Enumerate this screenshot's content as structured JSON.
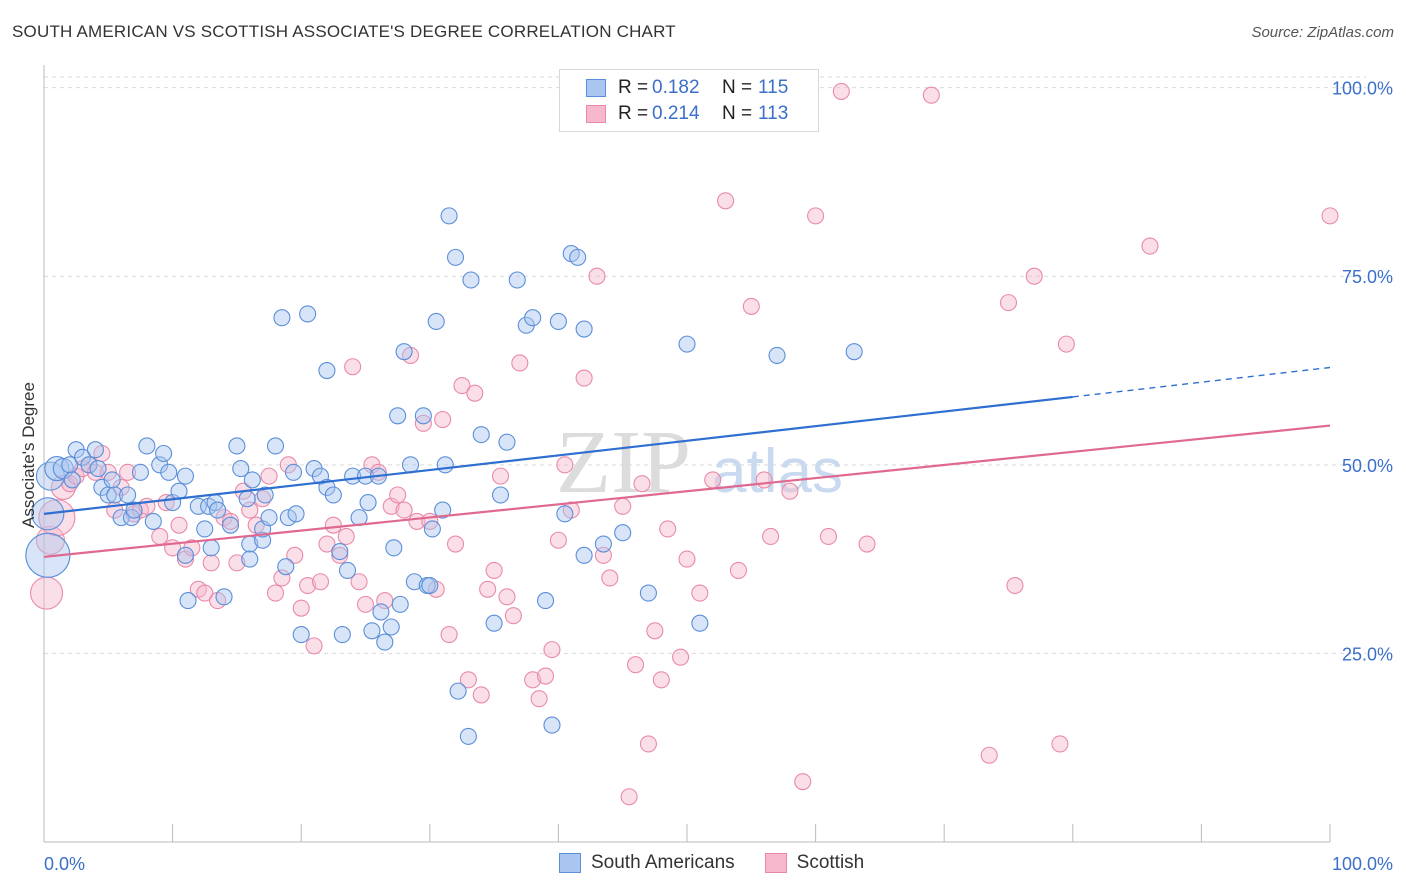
{
  "title": "SOUTH AMERICAN VS SCOTTISH ASSOCIATE'S DEGREE CORRELATION CHART",
  "source": "Source: ZipAtlas.com",
  "watermark": {
    "zip": "ZIP",
    "atlas": "atlas"
  },
  "legend_top": [
    {
      "r_label": "R =",
      "r_value": "0.182",
      "n_label": "N =",
      "n_value": "115"
    },
    {
      "r_label": "R =",
      "r_value": "0.214",
      "n_label": "N =",
      "n_value": "113"
    }
  ],
  "legend_bottom": [
    "South Americans",
    "Scottish"
  ],
  "colors": {
    "blue_fill": "#a8c6f0",
    "blue_stroke": "#5b8fd9",
    "blue_line": "#2f6fd1",
    "pink_fill": "#f7b8cd",
    "pink_stroke": "#e98aab",
    "pink_line": "#e0698f",
    "tick_label": "#3b6fc9",
    "grid": "#d9d9d9"
  },
  "chart_data": {
    "type": "scatter",
    "title": "SOUTH AMERICAN VS SCOTTISH ASSOCIATE'S DEGREE CORRELATION CHART",
    "xlabel": "",
    "ylabel": "Associate's Degree",
    "xlim": [
      0,
      100
    ],
    "ylim": [
      0,
      103
    ],
    "x_tick_labels": [
      "0.0%",
      "100.0%"
    ],
    "y_ticks": [
      25,
      50,
      75,
      100
    ],
    "y_tick_labels": [
      "25.0%",
      "50.0%",
      "75.0%",
      "100.0%"
    ],
    "grid": true,
    "legend_position": "top-center",
    "series": [
      {
        "name": "South Americans",
        "r": 0.182,
        "n": 115,
        "trend": {
          "x0": 0,
          "y0": 43.5,
          "x1": 80,
          "y1": 59.0,
          "dashed_to_x": 100,
          "dashed_to_y": 62.9
        },
        "points": [
          [
            0.3,
            38,
            22
          ],
          [
            0.3,
            43.5,
            16
          ],
          [
            0.5,
            48.5,
            14
          ],
          [
            1.0,
            49.5,
            12
          ],
          [
            1.5,
            49.5,
            10
          ],
          [
            2,
            50,
            8
          ],
          [
            2.5,
            52,
            8
          ],
          [
            2.2,
            48,
            8
          ],
          [
            3,
            51,
            8
          ],
          [
            3.5,
            50,
            8
          ],
          [
            4,
            52,
            8
          ],
          [
            4.2,
            49.5,
            8
          ],
          [
            4.5,
            47,
            8
          ],
          [
            5,
            46,
            8
          ],
          [
            5.3,
            48,
            8
          ],
          [
            5.5,
            46,
            8
          ],
          [
            6,
            43,
            8
          ],
          [
            6.5,
            46,
            8
          ],
          [
            6.8,
            43,
            8
          ],
          [
            7,
            44,
            8
          ],
          [
            7.5,
            49,
            8
          ],
          [
            8,
            52.5,
            8
          ],
          [
            8.5,
            42.5,
            8
          ],
          [
            9,
            50,
            8
          ],
          [
            9.3,
            51.5,
            8
          ],
          [
            9.7,
            49,
            8
          ],
          [
            10,
            45,
            8
          ],
          [
            10.5,
            46.5,
            8
          ],
          [
            11,
            38,
            8
          ],
          [
            11,
            48.5,
            8
          ],
          [
            11.2,
            32,
            8
          ],
          [
            12,
            44.5,
            8
          ],
          [
            12.5,
            41.5,
            8
          ],
          [
            12.8,
            44.5,
            8
          ],
          [
            13,
            39,
            8
          ],
          [
            13.3,
            45,
            8
          ],
          [
            13.5,
            44,
            8
          ],
          [
            14,
            32.5,
            8
          ],
          [
            14.5,
            42,
            8
          ],
          [
            15,
            52.5,
            8
          ],
          [
            15.3,
            49.5,
            8
          ],
          [
            15.8,
            45.5,
            8
          ],
          [
            16,
            39.5,
            8
          ],
          [
            16,
            37.5,
            8
          ],
          [
            16.2,
            48,
            8
          ],
          [
            17,
            40,
            8
          ],
          [
            17,
            41.5,
            8
          ],
          [
            17.2,
            46,
            8
          ],
          [
            17.5,
            43,
            8
          ],
          [
            18,
            52.5,
            8
          ],
          [
            18.5,
            69.5,
            8
          ],
          [
            18.8,
            36.5,
            8
          ],
          [
            19,
            43,
            8
          ],
          [
            19.4,
            49,
            8
          ],
          [
            19.6,
            43.5,
            8
          ],
          [
            20,
            27.5,
            8
          ],
          [
            20.5,
            70,
            8
          ],
          [
            21,
            49.5,
            8
          ],
          [
            21.5,
            48.5,
            8
          ],
          [
            22,
            47,
            8
          ],
          [
            22,
            62.5,
            8
          ],
          [
            22.5,
            46,
            8
          ],
          [
            23,
            38.5,
            8
          ],
          [
            23.2,
            27.5,
            8
          ],
          [
            23.6,
            36,
            8
          ],
          [
            24,
            48.5,
            8
          ],
          [
            24.5,
            43,
            8
          ],
          [
            25,
            48.5,
            8
          ],
          [
            25.2,
            45,
            8
          ],
          [
            25.5,
            28,
            8
          ],
          [
            26,
            48.5,
            8
          ],
          [
            26.2,
            30.5,
            8
          ],
          [
            26.5,
            26.5,
            8
          ],
          [
            27,
            28.5,
            8
          ],
          [
            27.2,
            39,
            8
          ],
          [
            27.5,
            56.5,
            8
          ],
          [
            27.7,
            31.5,
            8
          ],
          [
            28,
            65,
            8
          ],
          [
            28.5,
            50,
            8
          ],
          [
            28.8,
            34.5,
            8
          ],
          [
            29.5,
            56.5,
            8
          ],
          [
            29.8,
            34,
            8
          ],
          [
            30,
            34,
            8
          ],
          [
            30.2,
            41.5,
            8
          ],
          [
            30.5,
            69,
            8
          ],
          [
            31,
            44,
            8
          ],
          [
            31.2,
            50,
            8
          ],
          [
            31.5,
            83,
            8
          ],
          [
            32,
            77.5,
            8
          ],
          [
            32.2,
            20,
            8
          ],
          [
            33,
            14,
            8
          ],
          [
            33.2,
            74.5,
            8
          ],
          [
            34,
            54,
            8
          ],
          [
            35,
            29,
            8
          ],
          [
            35.5,
            46,
            8
          ],
          [
            36,
            53,
            8
          ],
          [
            36.8,
            74.5,
            8
          ],
          [
            37.5,
            68.5,
            8
          ],
          [
            38,
            69.5,
            8
          ],
          [
            39,
            32,
            8
          ],
          [
            39.5,
            15.5,
            8
          ],
          [
            40,
            69,
            8
          ],
          [
            40.5,
            43.5,
            8
          ],
          [
            41,
            78,
            8
          ],
          [
            41.5,
            77.5,
            8
          ],
          [
            42,
            68,
            8
          ],
          [
            42,
            38,
            8
          ],
          [
            43.5,
            39.5,
            8
          ],
          [
            45,
            41,
            8
          ],
          [
            47,
            33,
            8
          ],
          [
            50,
            66,
            8
          ],
          [
            51,
            29,
            8
          ],
          [
            57,
            64.5,
            8
          ],
          [
            63,
            65,
            8
          ]
        ]
      },
      {
        "name": "Scottish",
        "r": 0.214,
        "n": 113,
        "trend": {
          "x0": 0,
          "y0": 37.8,
          "x1": 100,
          "y1": 55.2
        },
        "points": [
          [
            0.2,
            33,
            16
          ],
          [
            0.5,
            40,
            14
          ],
          [
            1,
            43,
            18
          ],
          [
            1.5,
            47,
            12
          ],
          [
            2,
            47.5,
            8
          ],
          [
            2.5,
            48.5,
            8
          ],
          [
            3,
            49.5,
            8
          ],
          [
            3.5,
            50,
            8
          ],
          [
            4,
            49,
            8
          ],
          [
            4.5,
            51.5,
            8
          ],
          [
            5,
            49,
            8
          ],
          [
            5.5,
            44,
            8
          ],
          [
            6,
            47,
            8
          ],
          [
            6.5,
            49,
            8
          ],
          [
            7,
            43.5,
            8
          ],
          [
            7.5,
            44,
            8
          ],
          [
            8,
            44.5,
            8
          ],
          [
            9,
            40.5,
            8
          ],
          [
            9.5,
            45,
            8
          ],
          [
            10,
            39,
            8
          ],
          [
            10.5,
            42,
            8
          ],
          [
            11,
            37.5,
            8
          ],
          [
            11.5,
            39,
            8
          ],
          [
            12,
            33.5,
            8
          ],
          [
            12.5,
            33,
            8
          ],
          [
            13,
            37,
            8
          ],
          [
            13.5,
            32,
            8
          ],
          [
            14,
            43,
            8
          ],
          [
            14.5,
            42.5,
            8
          ],
          [
            15,
            37,
            8
          ],
          [
            15.5,
            46.5,
            8
          ],
          [
            16,
            44,
            8
          ],
          [
            16.5,
            42,
            8
          ],
          [
            17,
            45.5,
            8
          ],
          [
            17.5,
            48.5,
            8
          ],
          [
            18,
            33,
            8
          ],
          [
            18.5,
            35,
            8
          ],
          [
            19,
            50,
            8
          ],
          [
            19.5,
            38,
            8
          ],
          [
            20,
            31,
            8
          ],
          [
            20.5,
            34,
            8
          ],
          [
            21,
            26,
            8
          ],
          [
            21.5,
            34.5,
            8
          ],
          [
            22,
            39.5,
            8
          ],
          [
            22.5,
            42,
            8
          ],
          [
            23,
            38,
            8
          ],
          [
            23.5,
            40.5,
            8
          ],
          [
            24,
            63,
            8
          ],
          [
            24.5,
            34.5,
            8
          ],
          [
            25,
            31.5,
            8
          ],
          [
            25.5,
            50,
            8
          ],
          [
            26,
            49,
            8
          ],
          [
            26.5,
            32,
            8
          ],
          [
            27,
            44.5,
            8
          ],
          [
            27.5,
            46,
            8
          ],
          [
            28,
            44,
            8
          ],
          [
            28.5,
            64.5,
            8
          ],
          [
            29,
            42.5,
            8
          ],
          [
            29.5,
            55.5,
            8
          ],
          [
            30,
            42.5,
            8
          ],
          [
            30.5,
            33.5,
            8
          ],
          [
            31,
            56,
            8
          ],
          [
            31.5,
            27.5,
            8
          ],
          [
            32,
            39.5,
            8
          ],
          [
            32.5,
            60.5,
            8
          ],
          [
            33,
            21.5,
            8
          ],
          [
            33.5,
            59.5,
            8
          ],
          [
            34,
            19.5,
            8
          ],
          [
            34.5,
            33.5,
            8
          ],
          [
            35,
            36,
            8
          ],
          [
            35.5,
            48.5,
            8
          ],
          [
            36,
            32.5,
            8
          ],
          [
            36.5,
            30,
            8
          ],
          [
            37,
            63.5,
            8
          ],
          [
            38,
            21.5,
            8
          ],
          [
            38.5,
            19,
            8
          ],
          [
            39,
            22,
            8
          ],
          [
            39.5,
            25.5,
            8
          ],
          [
            40,
            40,
            8
          ],
          [
            40.5,
            50,
            8
          ],
          [
            41,
            44,
            8
          ],
          [
            42,
            61.5,
            8
          ],
          [
            43,
            75,
            8
          ],
          [
            43.5,
            38,
            8
          ],
          [
            44,
            35,
            8
          ],
          [
            45,
            44.5,
            8
          ],
          [
            45.5,
            6,
            8
          ],
          [
            46,
            23.5,
            8
          ],
          [
            46.5,
            47.5,
            8
          ],
          [
            47,
            13,
            8
          ],
          [
            47.5,
            28,
            8
          ],
          [
            48,
            21.5,
            8
          ],
          [
            48.5,
            41.5,
            8
          ],
          [
            49.5,
            24.5,
            8
          ],
          [
            50,
            37.5,
            8
          ],
          [
            51,
            33,
            8
          ],
          [
            52,
            48,
            8
          ],
          [
            53,
            85,
            8
          ],
          [
            54,
            36,
            8
          ],
          [
            55,
            71,
            8
          ],
          [
            56,
            48,
            8
          ],
          [
            56.5,
            40.5,
            8
          ],
          [
            58,
            46.5,
            8
          ],
          [
            59,
            8,
            8
          ],
          [
            60,
            83,
            8
          ],
          [
            61,
            40.5,
            8
          ],
          [
            62,
            99.5,
            8
          ],
          [
            64,
            39.5,
            8
          ],
          [
            69,
            99,
            8
          ],
          [
            73.5,
            11.5,
            8
          ],
          [
            75,
            71.5,
            8
          ],
          [
            75.5,
            34,
            8
          ],
          [
            77,
            75,
            8
          ],
          [
            79,
            13,
            8
          ],
          [
            79.5,
            66,
            8
          ],
          [
            86,
            79,
            8
          ],
          [
            100,
            83,
            8
          ]
        ]
      }
    ]
  }
}
